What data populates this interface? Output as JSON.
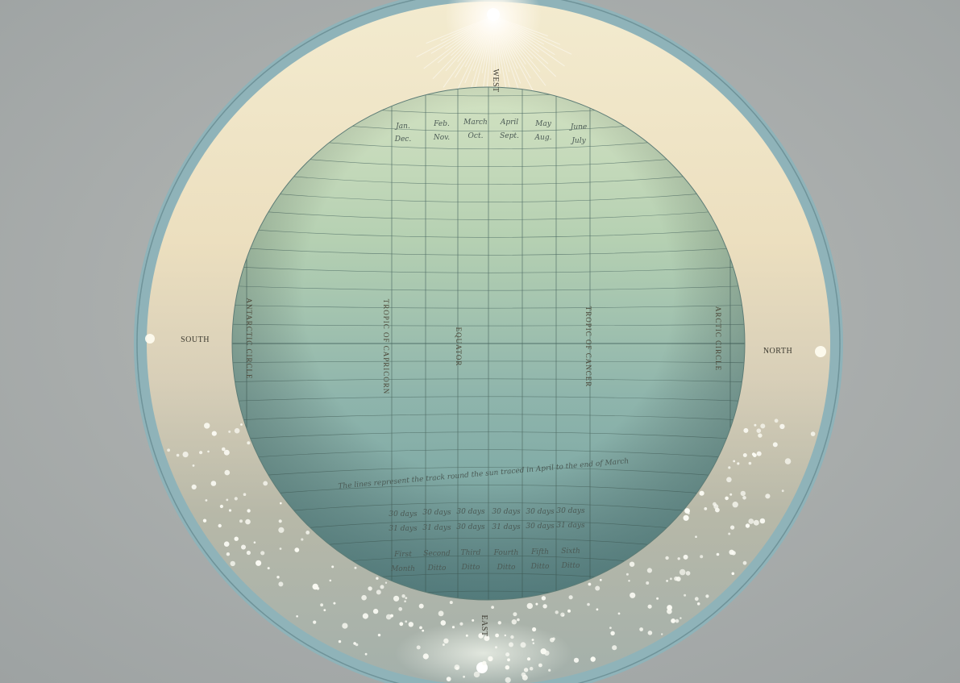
{
  "compass": {
    "top": "WEST",
    "bottom": "EAST",
    "left": "SOUTH",
    "right": "NORTH"
  },
  "globe_labels": {
    "antarctic": "ANTARCTIC CIRCLE",
    "capricorn": "TROPIC OF CAPRICORN",
    "equator": "EQUATOR",
    "cancer": "TROPIC OF CANCER",
    "arctic": "ARCTIC CIRCLE"
  },
  "top_table": {
    "row1": [
      "Jan.",
      "Feb.",
      "March",
      "April",
      "May",
      "June"
    ],
    "row2": [
      "Dec.",
      "Nov.",
      "Oct.",
      "Sept.",
      "Aug.",
      "July"
    ]
  },
  "bottom_table": {
    "caption": "The lines represent the track round the sun traced in April to the end of March",
    "row1": [
      "30 days",
      "30 days",
      "30 days",
      "30 days",
      "30 days",
      "30 days"
    ],
    "row2": [
      "31 days",
      "31 days",
      "30 days",
      "31 days",
      "30 days",
      "31 days"
    ],
    "row3": [
      "First",
      "Second",
      "Third",
      "Fourth",
      "Fifth",
      "Sixth"
    ],
    "row4": [
      "Month",
      "Ditto",
      "Ditto",
      "Ditto",
      "Ditto",
      "Ditto"
    ]
  },
  "colors": {
    "background": "#a9adab",
    "ring": "#8fb2b8",
    "band_top": "#efe6c8",
    "band_bottom": "#bdbcaa",
    "globe_top": "#c3d8b9",
    "globe_bottom": "#74a0a0",
    "grid": "#4e6b64"
  }
}
